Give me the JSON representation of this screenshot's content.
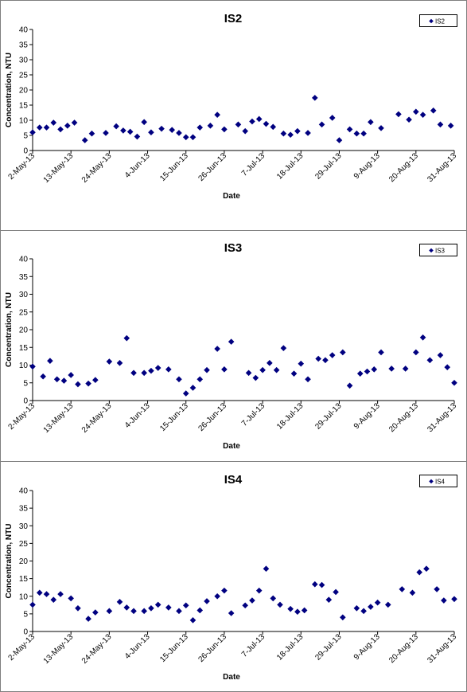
{
  "chart_data": [
    {
      "type": "scatter",
      "title": "IS2",
      "xlabel": "Date",
      "ylabel": "Concentration, NTU",
      "ylim": [
        0,
        40
      ],
      "yticks": [
        "0",
        "5",
        "10",
        "15",
        "20",
        "25",
        "30",
        "35",
        "40"
      ],
      "xlim": [
        "2013-05-02",
        "2013-08-31"
      ],
      "xticks": [
        "2-May-13",
        "13-May-13",
        "24-May-13",
        "4-Jun-13",
        "15-Jun-13",
        "26-Jun-13",
        "7-Jul-13",
        "18-Jul-13",
        "29-Jul-13",
        "9-Aug-13",
        "20-Aug-13",
        "31-Aug-13"
      ],
      "grid": false,
      "legend_position": "top-right",
      "color": "#000080",
      "series": [
        {
          "name": "IS2",
          "points": [
            [
              "2013-05-02",
              6
            ],
            [
              "2013-05-04",
              7.6
            ],
            [
              "2013-05-06",
              7.6
            ],
            [
              "2013-05-08",
              9.2
            ],
            [
              "2013-05-10",
              7
            ],
            [
              "2013-05-12",
              8.2
            ],
            [
              "2013-05-14",
              9.2
            ],
            [
              "2013-05-17",
              3.4
            ],
            [
              "2013-05-19",
              5.6
            ],
            [
              "2013-05-23",
              5.8
            ],
            [
              "2013-05-26",
              8
            ],
            [
              "2013-05-28",
              6.6
            ],
            [
              "2013-05-30",
              6.2
            ],
            [
              "2013-06-01",
              4.6
            ],
            [
              "2013-06-03",
              9.4
            ],
            [
              "2013-06-05",
              6
            ],
            [
              "2013-06-08",
              7.2
            ],
            [
              "2013-06-11",
              6.8
            ],
            [
              "2013-06-13",
              5.8
            ],
            [
              "2013-06-15",
              4.4
            ],
            [
              "2013-06-17",
              4.4
            ],
            [
              "2013-06-19",
              7.6
            ],
            [
              "2013-06-22",
              8.2
            ],
            [
              "2013-06-24",
              11.8
            ],
            [
              "2013-06-26",
              7
            ],
            [
              "2013-06-30",
              8.6
            ],
            [
              "2013-07-02",
              6.4
            ],
            [
              "2013-07-04",
              9.6
            ],
            [
              "2013-07-06",
              10.4
            ],
            [
              "2013-07-08",
              8.8
            ],
            [
              "2013-07-10",
              7.8
            ],
            [
              "2013-07-13",
              5.6
            ],
            [
              "2013-07-15",
              5.2
            ],
            [
              "2013-07-17",
              6.4
            ],
            [
              "2013-07-20",
              5.8
            ],
            [
              "2013-07-22",
              17.4
            ],
            [
              "2013-07-24",
              8.6
            ],
            [
              "2013-07-27",
              10.8
            ],
            [
              "2013-07-29",
              3.4
            ],
            [
              "2013-08-01",
              7
            ],
            [
              "2013-08-03",
              5.6
            ],
            [
              "2013-08-05",
              5.6
            ],
            [
              "2013-08-07",
              9.4
            ],
            [
              "2013-08-10",
              7.4
            ],
            [
              "2013-08-15",
              12
            ],
            [
              "2013-08-18",
              10.2
            ],
            [
              "2013-08-20",
              12.8
            ],
            [
              "2013-08-22",
              11.8
            ],
            [
              "2013-08-25",
              13.2
            ],
            [
              "2013-08-27",
              8.6
            ],
            [
              "2013-08-30",
              8.2
            ]
          ]
        }
      ]
    },
    {
      "type": "scatter",
      "title": "IS3",
      "xlabel": "Date",
      "ylabel": "Concentration, NTU",
      "ylim": [
        0,
        40
      ],
      "yticks": [
        "0",
        "5",
        "10",
        "15",
        "20",
        "25",
        "30",
        "35",
        "40"
      ],
      "xlim": [
        "2013-05-02",
        "2013-08-31"
      ],
      "xticks": [
        "2-May-13",
        "13-May-13",
        "24-May-13",
        "4-Jun-13",
        "15-Jun-13",
        "26-Jun-13",
        "7-Jul-13",
        "18-Jul-13",
        "29-Jul-13",
        "9-Aug-13",
        "20-Aug-13",
        "31-Aug-13"
      ],
      "grid": false,
      "legend_position": "top-right",
      "color": "#000080",
      "series": [
        {
          "name": "IS3",
          "points": [
            [
              "2013-05-02",
              9.6
            ],
            [
              "2013-05-05",
              6.8
            ],
            [
              "2013-05-07",
              11.2
            ],
            [
              "2013-05-09",
              6
            ],
            [
              "2013-05-11",
              5.6
            ],
            [
              "2013-05-13",
              7.2
            ],
            [
              "2013-05-15",
              4.6
            ],
            [
              "2013-05-18",
              4.8
            ],
            [
              "2013-05-20",
              5.8
            ],
            [
              "2013-05-24",
              11
            ],
            [
              "2013-05-27",
              10.6
            ],
            [
              "2013-05-29",
              17.6
            ],
            [
              "2013-05-31",
              7.8
            ],
            [
              "2013-06-03",
              7.8
            ],
            [
              "2013-06-05",
              8.4
            ],
            [
              "2013-06-07",
              9.2
            ],
            [
              "2013-06-10",
              8.8
            ],
            [
              "2013-06-13",
              6
            ],
            [
              "2013-06-15",
              2
            ],
            [
              "2013-06-17",
              3.6
            ],
            [
              "2013-06-19",
              6
            ],
            [
              "2013-06-21",
              8.6
            ],
            [
              "2013-06-24",
              14.6
            ],
            [
              "2013-06-26",
              8.8
            ],
            [
              "2013-06-28",
              16.6
            ],
            [
              "2013-07-03",
              7.8
            ],
            [
              "2013-07-05",
              6.4
            ],
            [
              "2013-07-07",
              8.6
            ],
            [
              "2013-07-09",
              10.6
            ],
            [
              "2013-07-11",
              8.6
            ],
            [
              "2013-07-13",
              14.8
            ],
            [
              "2013-07-16",
              7.6
            ],
            [
              "2013-07-18",
              10.4
            ],
            [
              "2013-07-20",
              6
            ],
            [
              "2013-07-23",
              11.8
            ],
            [
              "2013-07-25",
              11.4
            ],
            [
              "2013-07-27",
              12.8
            ],
            [
              "2013-07-30",
              13.6
            ],
            [
              "2013-08-01",
              4.2
            ],
            [
              "2013-08-04",
              7.6
            ],
            [
              "2013-08-06",
              8.2
            ],
            [
              "2013-08-08",
              8.8
            ],
            [
              "2013-08-10",
              13.6
            ],
            [
              "2013-08-13",
              9
            ],
            [
              "2013-08-17",
              9
            ],
            [
              "2013-08-20",
              13.6
            ],
            [
              "2013-08-22",
              17.8
            ],
            [
              "2013-08-24",
              11.4
            ],
            [
              "2013-08-27",
              12.8
            ],
            [
              "2013-08-29",
              9.4
            ],
            [
              "2013-08-31",
              5
            ]
          ]
        }
      ]
    },
    {
      "type": "scatter",
      "title": "IS4",
      "xlabel": "Date",
      "ylabel": "Concentration, NTU",
      "ylim": [
        0,
        40
      ],
      "yticks": [
        "0",
        "5",
        "10",
        "15",
        "20",
        "25",
        "30",
        "35",
        "40"
      ],
      "xlim": [
        "2013-05-02",
        "2013-08-31"
      ],
      "xticks": [
        "2-May-13",
        "13-May-13",
        "24-May-13",
        "4-Jun-13",
        "15-Jun-13",
        "26-Jun-13",
        "7-Jul-13",
        "18-Jul-13",
        "29-Jul-13",
        "9-Aug-13",
        "20-Aug-13",
        "31-Aug-13"
      ],
      "grid": false,
      "legend_position": "top-right",
      "color": "#000080",
      "series": [
        {
          "name": "IS4",
          "points": [
            [
              "2013-05-02",
              7.6
            ],
            [
              "2013-05-04",
              11
            ],
            [
              "2013-05-06",
              10.6
            ],
            [
              "2013-05-08",
              9
            ],
            [
              "2013-05-10",
              10.6
            ],
            [
              "2013-05-13",
              9.4
            ],
            [
              "2013-05-15",
              6.6
            ],
            [
              "2013-05-18",
              3.6
            ],
            [
              "2013-05-20",
              5.4
            ],
            [
              "2013-05-24",
              5.8
            ],
            [
              "2013-05-27",
              8.4
            ],
            [
              "2013-05-29",
              6.8
            ],
            [
              "2013-05-31",
              5.8
            ],
            [
              "2013-06-03",
              5.8
            ],
            [
              "2013-06-05",
              6.6
            ],
            [
              "2013-06-07",
              7.6
            ],
            [
              "2013-06-10",
              6.8
            ],
            [
              "2013-06-13",
              5.8
            ],
            [
              "2013-06-15",
              7.4
            ],
            [
              "2013-06-17",
              3.2
            ],
            [
              "2013-06-19",
              6
            ],
            [
              "2013-06-21",
              8.6
            ],
            [
              "2013-06-24",
              10
            ],
            [
              "2013-06-26",
              11.6
            ],
            [
              "2013-06-28",
              5.2
            ],
            [
              "2013-07-02",
              7.4
            ],
            [
              "2013-07-04",
              8.8
            ],
            [
              "2013-07-06",
              11.6
            ],
            [
              "2013-07-08",
              17.8
            ],
            [
              "2013-07-10",
              9.4
            ],
            [
              "2013-07-12",
              7.6
            ],
            [
              "2013-07-15",
              6.4
            ],
            [
              "2013-07-17",
              5.6
            ],
            [
              "2013-07-19",
              6
            ],
            [
              "2013-07-22",
              13.4
            ],
            [
              "2013-07-24",
              13.2
            ],
            [
              "2013-07-26",
              9
            ],
            [
              "2013-07-28",
              11.2
            ],
            [
              "2013-07-30",
              4
            ],
            [
              "2013-08-03",
              6.6
            ],
            [
              "2013-08-05",
              5.8
            ],
            [
              "2013-08-07",
              7
            ],
            [
              "2013-08-09",
              8.2
            ],
            [
              "2013-08-12",
              7.6
            ],
            [
              "2013-08-16",
              12
            ],
            [
              "2013-08-19",
              11
            ],
            [
              "2013-08-21",
              16.8
            ],
            [
              "2013-08-23",
              17.8
            ],
            [
              "2013-08-26",
              12
            ],
            [
              "2013-08-28",
              8.8
            ],
            [
              "2013-08-31",
              9.2
            ]
          ]
        }
      ]
    }
  ]
}
